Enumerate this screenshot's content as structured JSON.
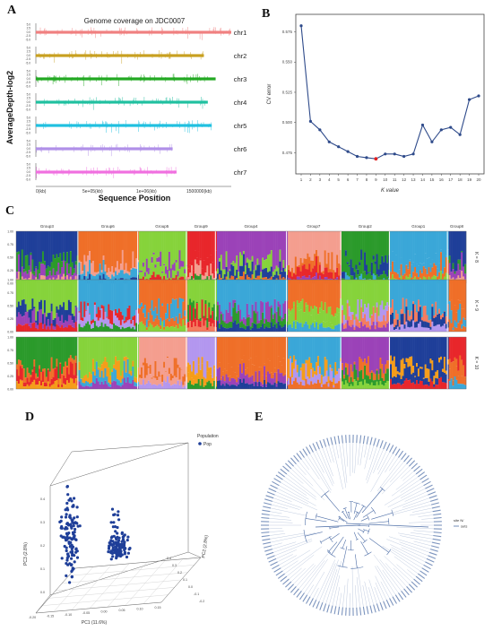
{
  "labels": {
    "A": "A",
    "B": "B",
    "C": "C",
    "D": "D",
    "E": "E"
  },
  "panelA": {
    "title": "Genome coverage on JDC0007",
    "ylabel": "AverageDepth-log2",
    "xlabel": "Sequence Position",
    "xticks": [
      "0(kb)",
      "5e+05(kb)",
      "1e+06(kb)",
      "1500000(kb)"
    ],
    "yticks": [
      "5.0",
      "2.5",
      "0.0",
      "-2.5",
      "-5.0"
    ],
    "chromosomes": [
      {
        "name": "chr1",
        "color": "#f08080",
        "length": 1.0
      },
      {
        "name": "chr2",
        "color": "#c8a020",
        "length": 0.86
      },
      {
        "name": "chr3",
        "color": "#22a822",
        "length": 0.92
      },
      {
        "name": "chr4",
        "color": "#20c0a0",
        "length": 0.88
      },
      {
        "name": "chr5",
        "color": "#20c0e0",
        "length": 0.9
      },
      {
        "name": "chr6",
        "color": "#b090e8",
        "length": 0.7
      },
      {
        "name": "chr7",
        "color": "#f070e0",
        "length": 0.72
      }
    ]
  },
  "chart_data": {
    "type": "line",
    "x": [
      1,
      2,
      3,
      4,
      5,
      6,
      7,
      8,
      9,
      10,
      11,
      12,
      13,
      14,
      15,
      16,
      17,
      18,
      19,
      20
    ],
    "values": [
      0.58,
      0.501,
      0.494,
      0.484,
      0.48,
      0.476,
      0.472,
      0.471,
      0.47,
      0.474,
      0.474,
      0.472,
      0.474,
      0.498,
      0.484,
      0.494,
      0.496,
      0.49,
      0.519,
      0.522
    ],
    "highlight_index": 8,
    "xlabel": "K value",
    "ylabel": "CV error",
    "yticks": [
      "0.475",
      "0.500",
      "0.525",
      "0.550",
      "0.575"
    ],
    "ylim": [
      0.462,
      0.585
    ],
    "line_color": "#2e4a8a",
    "point_color": "#2e4a8a",
    "highlight_color": "#e02020"
  },
  "panelC": {
    "groups": [
      "Group3",
      "Group6",
      "Group5",
      "Group9",
      "Group4",
      "Group7",
      "Group2",
      "Group1",
      "Group8"
    ],
    "group_widths": [
      66,
      64,
      52,
      31,
      76,
      58,
      52,
      62,
      20
    ],
    "rows": [
      {
        "label": "K = 8",
        "palette": [
          "#1f3f99",
          "#e8262b",
          "#2b9a2b",
          "#ef6f28",
          "#9b42b8",
          "#3aa7d8",
          "#86d33b",
          "#f49e8f"
        ]
      },
      {
        "label": "K = 9",
        "palette": [
          "#2b9a2b",
          "#86d33b",
          "#f47b5e",
          "#1f3f99",
          "#3aa7d8",
          "#9b42b8",
          "#b397ef",
          "#ef6f28",
          "#e8262b"
        ]
      },
      {
        "label": "K = 10",
        "palette": [
          "#9b42b8",
          "#b397ef",
          "#2b9a2b",
          "#1f3f99",
          "#ef6f28",
          "#86d33b",
          "#e8262b",
          "#3aa7d8",
          "#f49e8f",
          "#f59d1a"
        ]
      }
    ],
    "yticks": [
      "1.00",
      "0.75",
      "0.50",
      "0.25",
      "0.00"
    ]
  },
  "panelD": {
    "legend_title": "Population",
    "legend_item": "Pop",
    "xlabel": "PC1 (11.6%)",
    "ylabel": "PC3 (2.8%)",
    "zlabel": "PC2 (2.8%)",
    "xticks": [
      "-0.20",
      "-0.15",
      "-0.10",
      "-0.05",
      "0.00",
      "0.05",
      "0.10",
      "0.15"
    ],
    "zticks": [
      "0.4",
      "0.3",
      "0.2",
      "0.1",
      "0.0",
      "-0.1",
      "-0.2"
    ],
    "yticks": [
      "0.4",
      "0.3",
      "0.2",
      "0.1",
      "0.0"
    ],
    "point_color": "#1f3f99"
  },
  "panelE": {
    "legend_title": "site N/",
    "legend_item": "sets",
    "tree_color": "#5070a8"
  }
}
